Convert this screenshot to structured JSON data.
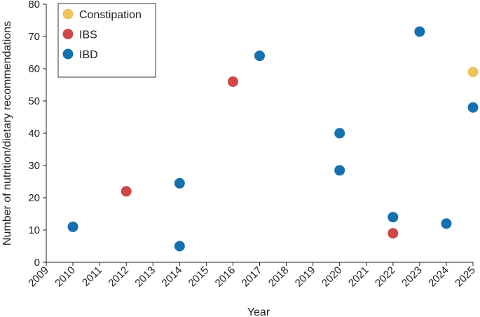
{
  "chart_data": {
    "type": "scatter",
    "xlabel": "Year",
    "ylabel": "Number of nutrition/dietary recommendations",
    "xlim": [
      2009,
      2025
    ],
    "ylim": [
      0,
      80
    ],
    "x_ticks": [
      "2009",
      "2010",
      "2011",
      "2012",
      "2013",
      "2014",
      "2015",
      "2016",
      "2017",
      "2018",
      "2019",
      "2020",
      "2021",
      "2022",
      "2023",
      "2024",
      "2025"
    ],
    "y_ticks": [
      "0",
      "10",
      "20",
      "30",
      "40",
      "50",
      "60",
      "70",
      "80"
    ],
    "grid": false,
    "legend_position": "top-left",
    "series": [
      {
        "name": "Constipation",
        "color": "#EBC45E",
        "points": [
          {
            "x": 2025,
            "y": 59
          }
        ]
      },
      {
        "name": "IBS",
        "color": "#CF4849",
        "points": [
          {
            "x": 2012,
            "y": 22
          },
          {
            "x": 2016,
            "y": 56
          },
          {
            "x": 2022,
            "y": 9
          }
        ]
      },
      {
        "name": "IBD",
        "color": "#1670B0",
        "points": [
          {
            "x": 2010,
            "y": 11
          },
          {
            "x": 2014,
            "y": 24.5
          },
          {
            "x": 2014,
            "y": 5
          },
          {
            "x": 2017,
            "y": 64
          },
          {
            "x": 2020,
            "y": 40
          },
          {
            "x": 2020,
            "y": 28.5
          },
          {
            "x": 2022,
            "y": 14
          },
          {
            "x": 2023,
            "y": 71.5
          },
          {
            "x": 2024,
            "y": 12
          },
          {
            "x": 2025,
            "y": 48
          }
        ]
      }
    ]
  }
}
